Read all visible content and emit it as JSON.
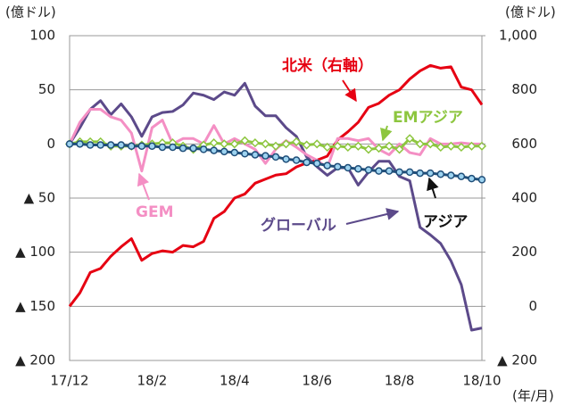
{
  "chart_data": {
    "type": "line",
    "y_unit": "(億ドル)",
    "y2_unit": "(億ドル)",
    "x_unit": "(年/月)",
    "categories": [
      "17/12",
      null,
      null,
      null,
      null,
      null,
      null,
      null,
      "18/2",
      null,
      null,
      null,
      null,
      null,
      null,
      null,
      "18/4",
      null,
      null,
      null,
      null,
      null,
      null,
      null,
      "18/6",
      null,
      null,
      null,
      null,
      null,
      null,
      null,
      "18/8",
      null,
      null,
      null,
      null,
      null,
      null,
      null,
      "18/10"
    ],
    "ylim": [
      -200,
      100
    ],
    "yticks": [
      100,
      50,
      0,
      {
        "value": -50,
        "label": "▲ 50"
      },
      {
        "value": -100,
        "label": "▲ 100"
      },
      {
        "value": -150,
        "label": "▲ 150"
      },
      {
        "value": -200,
        "label": "▲ 200"
      }
    ],
    "y2lim": [
      -200,
      1000
    ],
    "y2ticks": [
      {
        "value": 1000,
        "label": "1,000"
      },
      800,
      600,
      400,
      200,
      0,
      {
        "value": -200,
        "label": "▲ 200"
      }
    ],
    "grid": true,
    "series": [
      {
        "name": "北米（右軸）",
        "axis": "y2",
        "color": "#e60012",
        "marker": "none",
        "values": [
          0,
          50,
          125,
          140,
          185,
          220,
          250,
          170,
          195,
          205,
          200,
          225,
          220,
          240,
          325,
          350,
          400,
          415,
          455,
          470,
          485,
          490,
          515,
          530,
          540,
          555,
          615,
          645,
          680,
          735,
          750,
          780,
          800,
          840,
          870,
          890,
          880,
          885,
          810,
          800,
          745
        ]
      },
      {
        "name": "グローバル",
        "color": "#5c4a8a",
        "marker": "none",
        "values": [
          0,
          15,
          32,
          40,
          27,
          37,
          25,
          7,
          25,
          29,
          30,
          36,
          47,
          45,
          41,
          48,
          45,
          56,
          35,
          26,
          26,
          15,
          7,
          -12,
          -21,
          -29,
          -22,
          -22,
          -38,
          -26,
          -16,
          -16,
          -30,
          -34,
          -77,
          -84,
          -92,
          -108,
          -130,
          -172,
          -170
        ]
      },
      {
        "name": "GEM",
        "color": "#f48fc4",
        "marker": "none",
        "values": [
          0,
          20,
          32,
          32,
          25,
          22,
          10,
          -25,
          15,
          22,
          0,
          5,
          5,
          0,
          17,
          0,
          5,
          0,
          -5,
          -18,
          -5,
          3,
          -3,
          -10,
          -15,
          -22,
          5,
          5,
          3,
          5,
          -5,
          -10,
          0,
          -8,
          -10,
          5,
          0,
          0,
          1,
          0,
          0
        ]
      },
      {
        "name": "EMアジア",
        "color": "#8dc63f",
        "marker": "diamond",
        "values": [
          0,
          2,
          2,
          2,
          -2,
          -2,
          -2,
          -1,
          0,
          1,
          1,
          -2,
          -5,
          -1,
          1,
          0,
          0,
          3,
          1,
          0,
          -2,
          0,
          2,
          -1,
          0,
          -3,
          -2,
          -3,
          -2,
          -5,
          -4,
          -2,
          -5,
          5,
          0,
          0,
          -3,
          -2,
          -3,
          -2,
          -2
        ]
      },
      {
        "name": "アジア",
        "color": "#1f4e79",
        "marker": "circle",
        "values": [
          0,
          0,
          -1,
          -1,
          -1,
          -1,
          -2,
          -2,
          -2,
          -3,
          -3,
          -4,
          -4,
          -5,
          -6,
          -7,
          -8,
          -9,
          -10,
          -11,
          -12,
          -14,
          -15,
          -17,
          -18,
          -20,
          -21,
          -22,
          -23,
          -24,
          -25,
          -25,
          -26,
          -26,
          -27,
          -27,
          -28,
          -29,
          -30,
          -32,
          -33
        ]
      }
    ]
  }
}
